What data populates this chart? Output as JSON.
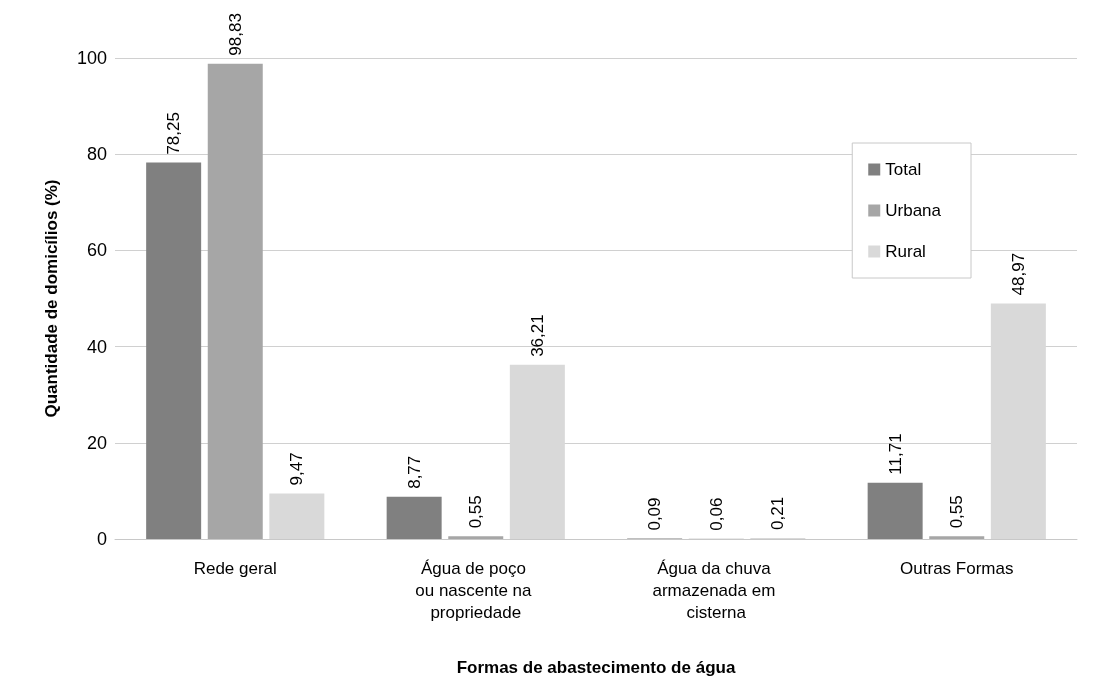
{
  "chart_data": {
    "type": "bar",
    "xlabel": "Formas de abastecimento de água",
    "ylabel": "Quantidade de domicílios (%)",
    "categories": [
      "Rede geral",
      "Água de poço ou nascente na propriedade",
      "Água da chuva armazenada em cisterna",
      "Outras Formas"
    ],
    "series": [
      {
        "name": "Total",
        "color": "#808080",
        "values": [
          78.25,
          8.77,
          0.09,
          11.71
        ],
        "value_labels": [
          "78,25",
          "8,77",
          "0,09",
          "11,71"
        ]
      },
      {
        "name": "Urbana",
        "color": "#a6a6a6",
        "values": [
          98.83,
          0.55,
          0.06,
          0.55
        ],
        "value_labels": [
          "98,83",
          "0,55",
          "0,06",
          "0,55"
        ]
      },
      {
        "name": "Rural",
        "color": "#d9d9d9",
        "values": [
          9.47,
          36.21,
          0.21,
          48.97
        ],
        "value_labels": [
          "9,47",
          "36,21",
          "0,21",
          "48,97"
        ]
      }
    ],
    "ylim": [
      0,
      100
    ],
    "yticks": [
      0,
      20,
      40,
      60,
      80,
      100
    ],
    "grid": "y",
    "legend": "top right"
  }
}
